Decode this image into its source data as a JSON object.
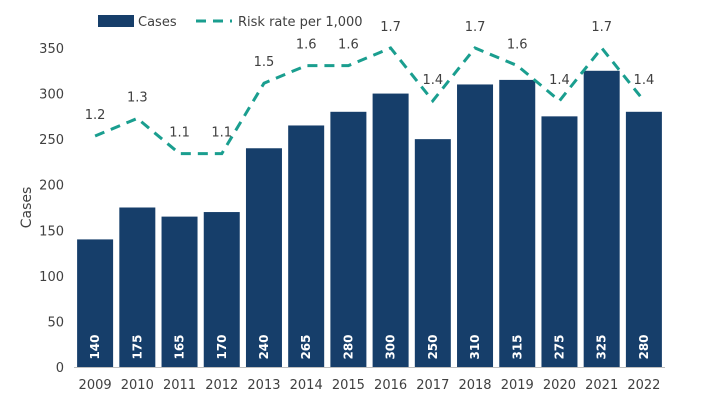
{
  "chart_data": {
    "type": "bar",
    "title": "",
    "xlabel": "",
    "ylabel": "Cases",
    "ylim": [
      0,
      350
    ],
    "yticks": [
      0,
      50,
      100,
      150,
      200,
      250,
      300,
      350
    ],
    "grid": false,
    "legend_position": "top-left",
    "categories": [
      "2009",
      "2010",
      "2011",
      "2012",
      "2013",
      "2014",
      "2015",
      "2016",
      "2017",
      "2018",
      "2019",
      "2020",
      "2021",
      "2022"
    ],
    "series": [
      {
        "name": "Cases",
        "type": "bar",
        "color": "#163E6A",
        "values": [
          140,
          175,
          165,
          170,
          240,
          265,
          280,
          300,
          250,
          310,
          315,
          275,
          325,
          280
        ]
      },
      {
        "name": "Risk rate per 1,000",
        "type": "line",
        "style": "dashed",
        "color": "#1A9E8F",
        "values": [
          1.2,
          1.3,
          1.1,
          1.1,
          1.5,
          1.6,
          1.6,
          1.7,
          1.4,
          1.7,
          1.6,
          1.4,
          1.7,
          1.4
        ],
        "labels": [
          "1.2",
          "1.3",
          "1.1",
          "1.1",
          "1.5",
          "1.6",
          "1.6",
          "1.7",
          "1.4",
          "1.7",
          "1.6",
          "1.4",
          "1.7",
          "1.4"
        ]
      }
    ]
  }
}
